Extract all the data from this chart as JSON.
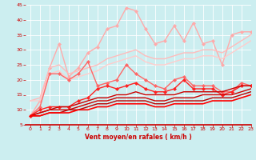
{
  "title": "",
  "xlabel": "Vent moyen/en rafales ( km/h )",
  "ylabel": "",
  "xlim": [
    -0.5,
    23
  ],
  "ylim": [
    5,
    45
  ],
  "yticks": [
    5,
    10,
    15,
    20,
    25,
    30,
    35,
    40,
    45
  ],
  "xticks": [
    0,
    1,
    2,
    3,
    4,
    5,
    6,
    7,
    8,
    9,
    10,
    11,
    12,
    13,
    14,
    15,
    16,
    17,
    18,
    19,
    20,
    21,
    22,
    23
  ],
  "bg_color": "#cceef0",
  "grid_color": "#aadddd",
  "series": [
    {
      "y": [
        8,
        13,
        24,
        32,
        21,
        24,
        29,
        31,
        37,
        38,
        44,
        43,
        37,
        32,
        33,
        38,
        33,
        39,
        32,
        33,
        25,
        35,
        36,
        36
      ],
      "color": "#ffaaaa",
      "lw": 1.0,
      "marker": "D",
      "ms": 2.0
    },
    {
      "y": [
        13,
        14,
        24,
        25,
        22,
        23,
        24,
        25,
        27,
        28,
        29,
        30,
        28,
        27,
        27,
        28,
        29,
        29,
        30,
        30,
        29,
        31,
        33,
        35
      ],
      "color": "#ffbbbb",
      "lw": 1.0,
      "marker": null,
      "ms": 0
    },
    {
      "y": [
        13,
        13,
        22,
        23,
        20,
        21,
        22,
        23,
        25,
        26,
        27,
        28,
        26,
        25,
        25,
        26,
        27,
        27,
        28,
        28,
        27,
        29,
        31,
        33
      ],
      "color": "#ffcccc",
      "lw": 1.0,
      "marker": null,
      "ms": 0
    },
    {
      "y": [
        8,
        11,
        22,
        22,
        20,
        22,
        26,
        18,
        19,
        20,
        25,
        22,
        20,
        18,
        17,
        20,
        21,
        18,
        18,
        18,
        16,
        16,
        19,
        18
      ],
      "color": "#ff6666",
      "lw": 1.0,
      "marker": "D",
      "ms": 2.0
    },
    {
      "y": [
        8,
        10,
        11,
        11,
        11,
        13,
        14,
        17,
        18,
        17,
        18,
        19,
        17,
        16,
        16,
        17,
        20,
        17,
        17,
        17,
        15,
        16,
        18,
        18
      ],
      "color": "#ff2222",
      "lw": 1.0,
      "marker": "D",
      "ms": 2.0
    },
    {
      "y": [
        8,
        9,
        10,
        11,
        11,
        12,
        13,
        14,
        14,
        15,
        15,
        16,
        15,
        15,
        15,
        15,
        16,
        16,
        16,
        16,
        16,
        17,
        18,
        18
      ],
      "color": "#cc0000",
      "lw": 1.0,
      "marker": null,
      "ms": 0
    },
    {
      "y": [
        8,
        9,
        10,
        10,
        10,
        11,
        12,
        13,
        13,
        14,
        14,
        14,
        14,
        13,
        13,
        14,
        14,
        14,
        15,
        15,
        15,
        15,
        16,
        17
      ],
      "color": "#cc0000",
      "lw": 1.0,
      "marker": null,
      "ms": 0
    },
    {
      "y": [
        8,
        8,
        9,
        9,
        10,
        10,
        11,
        12,
        12,
        13,
        13,
        13,
        13,
        12,
        12,
        13,
        13,
        13,
        13,
        14,
        14,
        14,
        15,
        16
      ],
      "color": "#bb0000",
      "lw": 1.0,
      "marker": null,
      "ms": 0
    },
    {
      "y": [
        8,
        8,
        9,
        9,
        9,
        10,
        10,
        11,
        11,
        12,
        12,
        12,
        12,
        11,
        11,
        12,
        12,
        12,
        12,
        13,
        13,
        13,
        14,
        15
      ],
      "color": "#ff0000",
      "lw": 1.2,
      "marker": null,
      "ms": 0
    }
  ]
}
